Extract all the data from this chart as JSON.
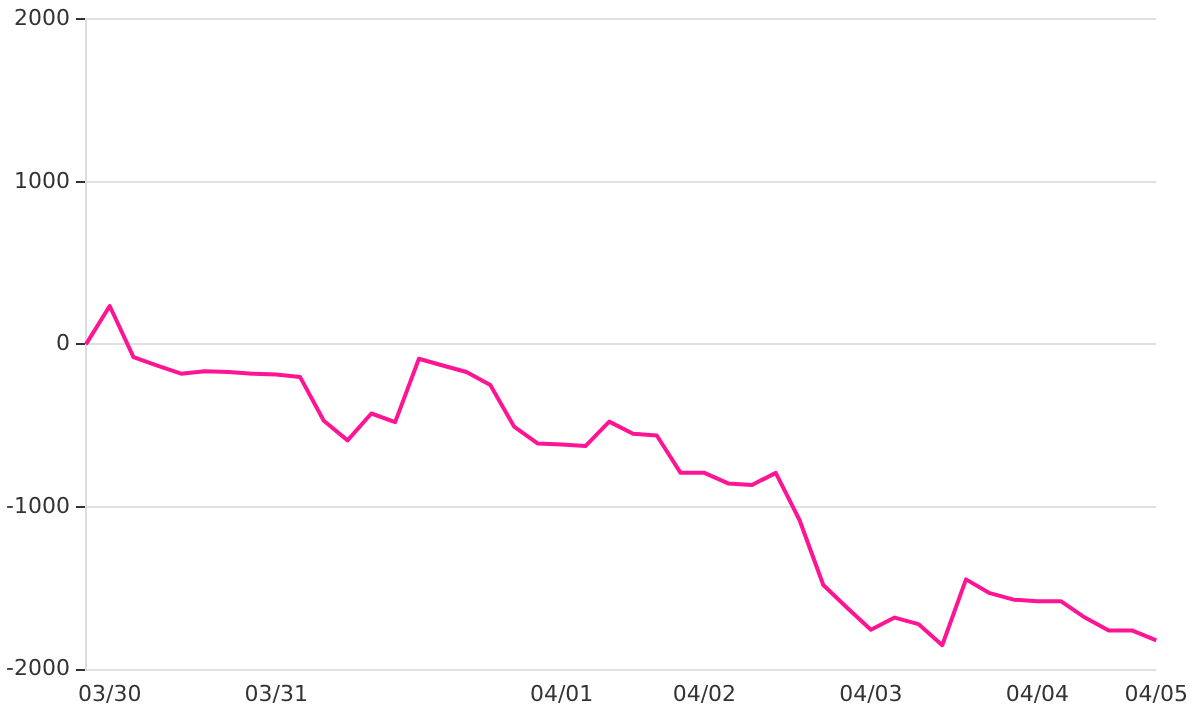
{
  "chart_data": {
    "type": "line",
    "categories": [
      null,
      "03/30",
      null,
      null,
      null,
      null,
      null,
      null,
      "03/31",
      null,
      null,
      null,
      null,
      null,
      null,
      null,
      null,
      null,
      null,
      null,
      "04/01",
      null,
      null,
      null,
      null,
      null,
      "04/02",
      null,
      null,
      null,
      null,
      null,
      null,
      "04/03",
      null,
      null,
      null,
      null,
      null,
      null,
      "04/04",
      null,
      null,
      null,
      null,
      "04/05"
    ],
    "series": [
      {
        "color": "#ff1493",
        "values": [
          0,
          236,
          -78,
          -130,
          -180,
          -165,
          -170,
          -180,
          -185,
          -200,
          -470,
          -590,
          -425,
          -478,
          -88,
          -130,
          -170,
          -250,
          -505,
          -610,
          -615,
          -625,
          -475,
          -550,
          -560,
          -790,
          -790,
          -855,
          -865,
          -790,
          -1080,
          -1480,
          -1620,
          -1755,
          -1680,
          -1720,
          -1850,
          -1445,
          -1530,
          -1570,
          -1580,
          -1580,
          -1680,
          -1760,
          -1760,
          -1820
        ]
      }
    ],
    "ylim": [
      -2000,
      2000
    ],
    "yticks": [
      -2000,
      -1000,
      0,
      1000,
      2000
    ],
    "grid": "y",
    "legend": false,
    "marker": "none",
    "line_style": "solid"
  }
}
